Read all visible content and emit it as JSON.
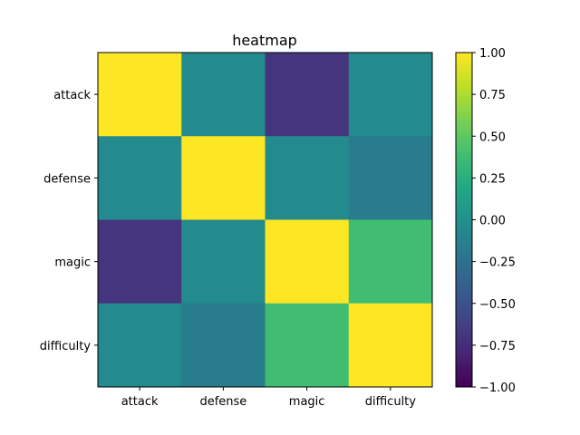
{
  "chart_data": {
    "type": "heatmap",
    "title": "heatmap",
    "x_categories": [
      "attack",
      "defense",
      "magic",
      "difficulty"
    ],
    "y_categories": [
      "attack",
      "defense",
      "magic",
      "difficulty"
    ],
    "values": [
      [
        1.0,
        -0.05,
        -0.7,
        -0.05
      ],
      [
        -0.05,
        1.0,
        -0.05,
        -0.18
      ],
      [
        -0.7,
        -0.05,
        1.0,
        0.38
      ],
      [
        -0.05,
        -0.18,
        0.38,
        1.0
      ]
    ],
    "colormap": "viridis",
    "vmin": -1.0,
    "vmax": 1.0,
    "colorbar_ticks": [
      "1.00",
      "0.75",
      "0.50",
      "0.25",
      "0.00",
      "−0.25",
      "−0.50",
      "−0.75",
      "−1.00"
    ],
    "colorbar_tick_values": [
      1.0,
      0.75,
      0.5,
      0.25,
      0.0,
      -0.25,
      -0.5,
      -0.75,
      -1.0
    ],
    "grid": false
  }
}
